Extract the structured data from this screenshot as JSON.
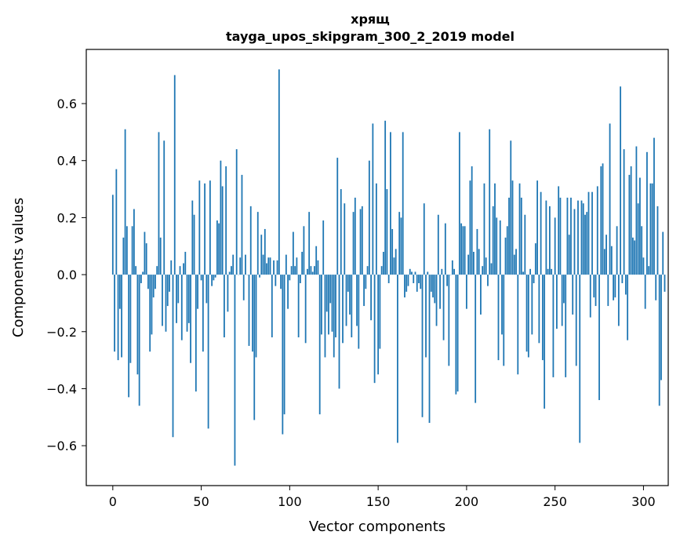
{
  "chart_data": {
    "type": "bar",
    "title": "хрящ",
    "subtitle": "tayga_upos_skipgram_300_2_2019 model",
    "xlabel": "Vector components",
    "ylabel": "Components values",
    "xlim": [
      -15,
      314
    ],
    "ylim": [
      -0.74,
      0.79
    ],
    "xticks": [
      0,
      50,
      100,
      150,
      200,
      250,
      300
    ],
    "yticks": [
      -0.6,
      -0.4,
      -0.2,
      0.0,
      0.2,
      0.4,
      0.6
    ],
    "ytick_labels": [
      "−0.6",
      "−0.4",
      "−0.2",
      "0.0",
      "0.2",
      "0.4",
      "0.6"
    ],
    "bar_color": "#1f77b4",
    "values": [
      0.28,
      -0.27,
      0.37,
      -0.3,
      -0.12,
      -0.29,
      0.13,
      0.51,
      0.17,
      -0.43,
      -0.31,
      0.17,
      0.23,
      0.03,
      -0.35,
      -0.46,
      -0.03,
      0.01,
      0.15,
      0.11,
      -0.05,
      -0.27,
      -0.21,
      -0.08,
      -0.05,
      0.03,
      0.5,
      0.13,
      -0.18,
      0.47,
      -0.2,
      -0.11,
      -0.06,
      0.05,
      -0.57,
      0.7,
      -0.17,
      -0.1,
      0.03,
      -0.23,
      0.04,
      0.08,
      -0.2,
      -0.17,
      -0.31,
      0.26,
      0.21,
      -0.41,
      -0.12,
      0.33,
      -0.02,
      -0.27,
      0.32,
      -0.1,
      -0.54,
      0.33,
      -0.04,
      -0.02,
      -0.01,
      0.19,
      0.18,
      0.4,
      0.31,
      -0.22,
      0.38,
      -0.13,
      0.01,
      0.03,
      0.07,
      -0.67,
      0.44,
      0.0,
      0.06,
      0.35,
      -0.09,
      0.07,
      0.0,
      -0.25,
      0.24,
      -0.27,
      -0.51,
      -0.29,
      0.22,
      -0.01,
      0.14,
      0.07,
      0.16,
      0.04,
      0.06,
      0.06,
      -0.22,
      0.05,
      -0.04,
      0.05,
      0.72,
      -0.05,
      -0.56,
      -0.49,
      0.07,
      -0.12,
      -0.02,
      0.03,
      0.15,
      0.03,
      0.06,
      -0.22,
      -0.03,
      0.08,
      0.17,
      -0.24,
      0.02,
      0.22,
      0.03,
      0.01,
      0.03,
      0.1,
      0.05,
      -0.49,
      -0.21,
      0.19,
      -0.29,
      -0.13,
      -0.21,
      -0.1,
      -0.2,
      -0.29,
      -0.22,
      0.41,
      -0.4,
      0.3,
      -0.24,
      0.25,
      -0.18,
      -0.06,
      -0.14,
      -0.22,
      0.22,
      0.27,
      -0.18,
      -0.26,
      0.23,
      0.24,
      -0.11,
      -0.05,
      0.03,
      0.4,
      -0.16,
      0.53,
      -0.38,
      0.32,
      -0.35,
      -0.26,
      0.03,
      0.08,
      0.54,
      0.3,
      -0.03,
      0.5,
      0.16,
      0.06,
      0.09,
      -0.59,
      0.22,
      0.2,
      0.5,
      -0.08,
      -0.06,
      -0.04,
      0.02,
      0.01,
      -0.03,
      0.01,
      -0.06,
      -0.03,
      -0.05,
      -0.5,
      0.25,
      -0.29,
      0.01,
      -0.52,
      -0.06,
      -0.08,
      -0.1,
      -0.18,
      0.21,
      -0.12,
      0.02,
      -0.23,
      0.18,
      -0.04,
      -0.32,
      0.0,
      0.05,
      0.02,
      -0.42,
      -0.41,
      0.5,
      0.18,
      0.17,
      0.17,
      -0.12,
      0.07,
      0.33,
      0.38,
      0.08,
      -0.45,
      0.16,
      0.09,
      -0.14,
      0.03,
      0.32,
      0.06,
      -0.04,
      0.51,
      0.04,
      0.24,
      0.32,
      0.2,
      -0.3,
      0.19,
      -0.21,
      -0.32,
      0.13,
      0.17,
      0.27,
      0.47,
      0.33,
      0.07,
      0.09,
      -0.35,
      0.32,
      0.27,
      0.01,
      0.21,
      -0.27,
      -0.29,
      0.02,
      -0.21,
      -0.03,
      0.11,
      0.33,
      -0.24,
      0.29,
      -0.3,
      -0.47,
      0.26,
      0.02,
      0.24,
      0.02,
      -0.36,
      0.2,
      -0.19,
      0.31,
      0.27,
      -0.18,
      -0.1,
      -0.36,
      0.27,
      0.14,
      0.27,
      -0.14,
      0.23,
      -0.32,
      0.26,
      -0.59,
      0.26,
      0.25,
      0.21,
      0.22,
      0.29,
      -0.15,
      0.29,
      -0.08,
      -0.11,
      0.31,
      -0.44,
      0.38,
      0.39,
      0.09,
      0.14,
      -0.11,
      0.53,
      0.1,
      -0.09,
      -0.08,
      0.17,
      -0.18,
      0.66,
      -0.03,
      0.44,
      -0.07,
      -0.23,
      0.35,
      0.38,
      0.13,
      0.12,
      0.45,
      0.25,
      0.34,
      0.17,
      0.06,
      -0.12,
      0.43,
      0.03,
      0.32,
      0.32,
      0.48,
      -0.09,
      0.24,
      -0.46,
      -0.37,
      0.15,
      -0.06
    ]
  }
}
